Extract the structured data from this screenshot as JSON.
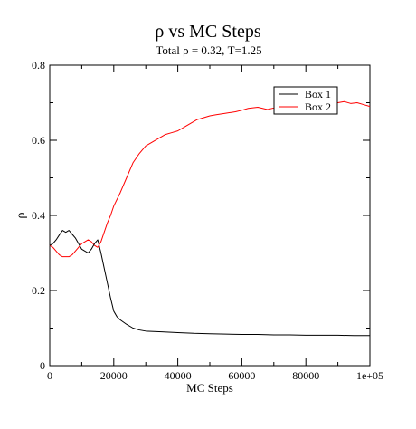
{
  "chart_data": {
    "type": "line",
    "title": "ρ   vs MC Steps",
    "subtitle": "Total ρ  = 0.32, T=1.25",
    "xlabel": "MC Steps",
    "ylabel": "ρ",
    "xlim": [
      0,
      100000
    ],
    "ylim": [
      0,
      0.8
    ],
    "x_ticks": [
      0,
      20000,
      40000,
      60000,
      80000,
      100000
    ],
    "x_tick_labels": [
      "0",
      "20000",
      "40000",
      "60000",
      "80000",
      "1e+05"
    ],
    "y_ticks": [
      0,
      0.2,
      0.4,
      0.6,
      0.8
    ],
    "y_tick_labels": [
      "0",
      "0.2",
      "0.4",
      "0.6",
      "0.8"
    ],
    "grid": false,
    "legend_position": "top-right",
    "series": [
      {
        "name": "Box 1",
        "color": "#000000",
        "points": [
          [
            0,
            0.32
          ],
          [
            1000,
            0.325
          ],
          [
            2000,
            0.335
          ],
          [
            3000,
            0.348
          ],
          [
            4000,
            0.36
          ],
          [
            5000,
            0.355
          ],
          [
            6000,
            0.36
          ],
          [
            7000,
            0.35
          ],
          [
            8000,
            0.34
          ],
          [
            9000,
            0.325
          ],
          [
            10000,
            0.31
          ],
          [
            11000,
            0.305
          ],
          [
            12000,
            0.3
          ],
          [
            13000,
            0.31
          ],
          [
            14000,
            0.325
          ],
          [
            15000,
            0.335
          ],
          [
            16000,
            0.3
          ],
          [
            17000,
            0.26
          ],
          [
            18000,
            0.22
          ],
          [
            19000,
            0.18
          ],
          [
            20000,
            0.145
          ],
          [
            21000,
            0.13
          ],
          [
            22000,
            0.122
          ],
          [
            24000,
            0.11
          ],
          [
            26000,
            0.1
          ],
          [
            28000,
            0.095
          ],
          [
            30000,
            0.092
          ],
          [
            35000,
            0.09
          ],
          [
            40000,
            0.088
          ],
          [
            45000,
            0.086
          ],
          [
            50000,
            0.085
          ],
          [
            55000,
            0.084
          ],
          [
            60000,
            0.083
          ],
          [
            65000,
            0.083
          ],
          [
            70000,
            0.082
          ],
          [
            75000,
            0.082
          ],
          [
            80000,
            0.081
          ],
          [
            85000,
            0.081
          ],
          [
            90000,
            0.081
          ],
          [
            95000,
            0.08
          ],
          [
            100000,
            0.08
          ]
        ]
      },
      {
        "name": "Box 2",
        "color": "#ff0000",
        "points": [
          [
            0,
            0.32
          ],
          [
            1000,
            0.315
          ],
          [
            2000,
            0.305
          ],
          [
            3000,
            0.295
          ],
          [
            4000,
            0.29
          ],
          [
            5000,
            0.29
          ],
          [
            6000,
            0.29
          ],
          [
            7000,
            0.295
          ],
          [
            8000,
            0.305
          ],
          [
            9000,
            0.315
          ],
          [
            10000,
            0.325
          ],
          [
            11000,
            0.33
          ],
          [
            12000,
            0.335
          ],
          [
            13000,
            0.33
          ],
          [
            14000,
            0.32
          ],
          [
            15000,
            0.315
          ],
          [
            16000,
            0.33
          ],
          [
            17000,
            0.355
          ],
          [
            18000,
            0.38
          ],
          [
            19000,
            0.4
          ],
          [
            20000,
            0.425
          ],
          [
            22000,
            0.46
          ],
          [
            24000,
            0.5
          ],
          [
            26000,
            0.54
          ],
          [
            28000,
            0.565
          ],
          [
            30000,
            0.585
          ],
          [
            32000,
            0.595
          ],
          [
            34000,
            0.605
          ],
          [
            36000,
            0.615
          ],
          [
            38000,
            0.62
          ],
          [
            40000,
            0.625
          ],
          [
            42000,
            0.635
          ],
          [
            44000,
            0.645
          ],
          [
            46000,
            0.655
          ],
          [
            48000,
            0.66
          ],
          [
            50000,
            0.665
          ],
          [
            52000,
            0.668
          ],
          [
            55000,
            0.672
          ],
          [
            58000,
            0.676
          ],
          [
            60000,
            0.68
          ],
          [
            62000,
            0.685
          ],
          [
            65000,
            0.688
          ],
          [
            68000,
            0.682
          ],
          [
            70000,
            0.686
          ],
          [
            72000,
            0.688
          ],
          [
            75000,
            0.69
          ],
          [
            78000,
            0.688
          ],
          [
            80000,
            0.693
          ],
          [
            82000,
            0.695
          ],
          [
            85000,
            0.698
          ],
          [
            88000,
            0.698
          ],
          [
            90000,
            0.7
          ],
          [
            92000,
            0.703
          ],
          [
            94000,
            0.698
          ],
          [
            96000,
            0.7
          ],
          [
            98000,
            0.695
          ],
          [
            100000,
            0.69
          ]
        ]
      }
    ]
  }
}
